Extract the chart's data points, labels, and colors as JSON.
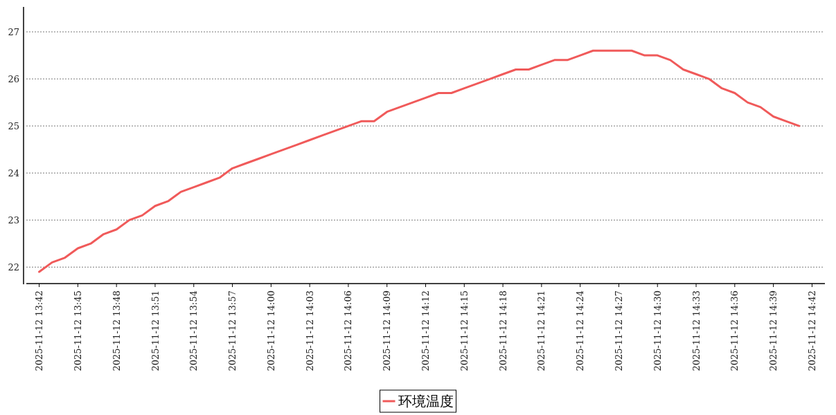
{
  "chart_data": {
    "type": "line",
    "x": [
      "2025-11-12T13:42",
      "2025-11-12T13:43",
      "2025-11-12T13:44",
      "2025-11-12T13:45",
      "2025-11-12T13:46",
      "2025-11-12T13:47",
      "2025-11-12T13:48",
      "2025-11-12T13:49",
      "2025-11-12T13:50",
      "2025-11-12T13:51",
      "2025-11-12T13:52",
      "2025-11-12T13:53",
      "2025-11-12T13:54",
      "2025-11-12T13:55",
      "2025-11-12T13:56",
      "2025-11-12T13:57",
      "2025-11-12T13:58",
      "2025-11-12T13:59",
      "2025-11-12T14:00",
      "2025-11-12T14:01",
      "2025-11-12T14:02",
      "2025-11-12T14:03",
      "2025-11-12T14:04",
      "2025-11-12T14:05",
      "2025-11-12T14:06",
      "2025-11-12T14:07",
      "2025-11-12T14:08",
      "2025-11-12T14:09",
      "2025-11-12T14:10",
      "2025-11-12T14:11",
      "2025-11-12T14:12",
      "2025-11-12T14:13",
      "2025-11-12T14:14",
      "2025-11-12T14:15",
      "2025-11-12T14:16",
      "2025-11-12T14:17",
      "2025-11-12T14:18",
      "2025-11-12T14:19",
      "2025-11-12T14:20",
      "2025-11-12T14:21",
      "2025-11-12T14:22",
      "2025-11-12T14:23",
      "2025-11-12T14:24",
      "2025-11-12T14:25",
      "2025-11-12T14:26",
      "2025-11-12T14:27",
      "2025-11-12T14:28",
      "2025-11-12T14:29",
      "2025-11-12T14:30",
      "2025-11-12T14:31",
      "2025-11-12T14:32",
      "2025-11-12T14:33",
      "2025-11-12T14:34",
      "2025-11-12T14:35",
      "2025-11-12T14:36",
      "2025-11-12T14:37",
      "2025-11-12T14:38",
      "2025-11-12T14:39",
      "2025-11-12T14:40",
      "2025-11-12T14:41"
    ],
    "series": [
      {
        "name": "环境温度",
        "color": "#f05a5a",
        "values": [
          21.9,
          22.1,
          22.2,
          22.4,
          22.5,
          22.7,
          22.8,
          23.0,
          23.1,
          23.3,
          23.4,
          23.6,
          23.7,
          23.8,
          23.9,
          24.1,
          24.2,
          24.3,
          24.4,
          24.5,
          24.6,
          24.7,
          24.8,
          24.9,
          25.0,
          25.1,
          25.1,
          25.3,
          25.4,
          25.5,
          25.6,
          25.7,
          25.7,
          25.8,
          25.9,
          26.0,
          26.1,
          26.2,
          26.2,
          26.3,
          26.4,
          26.4,
          26.5,
          26.6,
          26.6,
          26.6,
          26.6,
          26.5,
          26.5,
          26.4,
          26.2,
          26.1,
          26.0,
          25.8,
          25.7,
          25.5,
          25.4,
          25.2,
          25.1,
          25.0
        ]
      }
    ],
    "xlim": [
      "2025-11-12T13:41",
      "2025-11-12T14:43"
    ],
    "xticks": [
      {
        "value": "2025-11-12T13:42",
        "label": "2025-11-12 13:42"
      },
      {
        "value": "2025-11-12T13:45",
        "label": "2025-11-12 13:45"
      },
      {
        "value": "2025-11-12T13:48",
        "label": "2025-11-12 13:48"
      },
      {
        "value": "2025-11-12T13:51",
        "label": "2025-11-12 13:51"
      },
      {
        "value": "2025-11-12T13:54",
        "label": "2025-11-12 13:54"
      },
      {
        "value": "2025-11-12T13:57",
        "label": "2025-11-12 13:57"
      },
      {
        "value": "2025-11-12T14:00",
        "label": "2025-11-12 14:00"
      },
      {
        "value": "2025-11-12T14:03",
        "label": "2025-11-12 14:03"
      },
      {
        "value": "2025-11-12T14:06",
        "label": "2025-11-12 14:06"
      },
      {
        "value": "2025-11-12T14:09",
        "label": "2025-11-12 14:09"
      },
      {
        "value": "2025-11-12T14:12",
        "label": "2025-11-12 14:12"
      },
      {
        "value": "2025-11-12T14:15",
        "label": "2025-11-12 14:15"
      },
      {
        "value": "2025-11-12T14:18",
        "label": "2025-11-12 14:18"
      },
      {
        "value": "2025-11-12T14:21",
        "label": "2025-11-12 14:21"
      },
      {
        "value": "2025-11-12T14:24",
        "label": "2025-11-12 14:24"
      },
      {
        "value": "2025-11-12T14:27",
        "label": "2025-11-12 14:27"
      },
      {
        "value": "2025-11-12T14:30",
        "label": "2025-11-12 14:30"
      },
      {
        "value": "2025-11-12T14:33",
        "label": "2025-11-12 14:33"
      },
      {
        "value": "2025-11-12T14:36",
        "label": "2025-11-12 14:36"
      },
      {
        "value": "2025-11-12T14:39",
        "label": "2025-11-12 14:39"
      },
      {
        "value": "2025-11-12T14:42",
        "label": "2025-11-12 14:42"
      }
    ],
    "ylim": [
      21.65,
      27.53
    ],
    "yticks": [
      22,
      23,
      24,
      25,
      26,
      27
    ],
    "grid": "y",
    "legend": "bottom",
    "marker": "none",
    "line_style": "solid"
  }
}
